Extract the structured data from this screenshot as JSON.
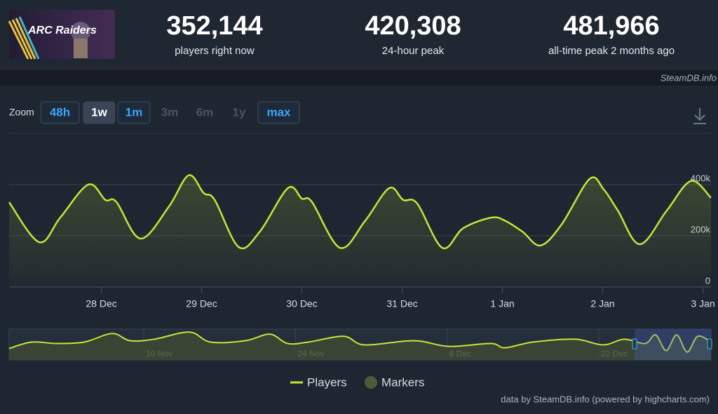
{
  "header": {
    "logo_text": "ARC Raiders",
    "stats": [
      {
        "value": "352,144",
        "label": "players right now"
      },
      {
        "value": "420,308",
        "label": "24-hour peak"
      },
      {
        "value": "481,966",
        "label": "all-time peak 2 months ago"
      }
    ],
    "source": "SteamDB.info"
  },
  "zoom": {
    "label": "Zoom",
    "buttons": [
      {
        "label": "48h",
        "state": "enabled"
      },
      {
        "label": "1w",
        "state": "selected"
      },
      {
        "label": "1m",
        "state": "enabled"
      },
      {
        "label": "3m",
        "state": "disabled"
      },
      {
        "label": "6m",
        "state": "disabled"
      },
      {
        "label": "1y",
        "state": "disabled"
      },
      {
        "label": "max",
        "state": "enabled"
      }
    ]
  },
  "chart_data": [
    {
      "type": "line",
      "x": [
        -0.92,
        -0.62,
        -0.41,
        -0.13,
        0.04,
        0.15,
        0.39,
        0.67,
        0.87,
        1.02,
        1.13,
        1.37,
        1.58,
        1.86,
        2.0,
        2.1,
        2.38,
        2.63,
        2.87,
        3.01,
        3.15,
        3.4,
        3.61,
        3.89,
        4.03,
        4.2,
        4.38,
        4.59,
        4.87,
        5.01,
        5.15,
        5.37,
        5.64,
        5.88,
        6.08
      ],
      "series": [
        {
          "name": "Players",
          "color": "#c4e538",
          "values": [
            331000,
            175000,
            271000,
            400000,
            340000,
            332000,
            189000,
            312000,
            436000,
            367000,
            340000,
            156000,
            216000,
            386000,
            345000,
            332000,
            153000,
            258000,
            386000,
            340000,
            326000,
            153000,
            230000,
            271000,
            258000,
            216000,
            162000,
            244000,
            422000,
            381000,
            299000,
            167000,
            299000,
            414000,
            348000
          ]
        }
      ],
      "marker_series": {
        "name": "Markers",
        "color": "#4d5b37"
      },
      "xlim": [
        -0.92,
        6.08
      ],
      "xticks": [
        {
          "value": 0,
          "label": "28 Dec"
        },
        {
          "value": 1,
          "label": "29 Dec"
        },
        {
          "value": 2,
          "label": "30 Dec"
        },
        {
          "value": 3,
          "label": "31 Dec"
        },
        {
          "value": 4,
          "label": "1 Jan"
        },
        {
          "value": 5,
          "label": "2 Jan"
        },
        {
          "value": 6,
          "label": "3 Jan"
        }
      ],
      "ylim": [
        0,
        600000
      ],
      "yticks": [
        0,
        {
          "value": 200000,
          "label": "200k"
        },
        {
          "value": 400000,
          "label": "400k"
        }
      ],
      "grid": true
    },
    {
      "type": "line",
      "x": [
        -12.43,
        -10.36,
        -8.09,
        -5.5,
        -2.91,
        -1.29,
        0.97,
        4.21,
        6.15,
        9.39,
        11.65,
        13.27,
        15.21,
        18.45,
        20.39,
        24.92,
        28.16,
        32.04,
        33.33,
        35.92,
        39.81,
        42.39,
        44.34,
        46.28,
        47.25,
        48.22,
        49.19,
        50.16,
        51.13,
        52.36
      ],
      "series": [
        {
          "name": "Players",
          "color": "#c4e538",
          "values": [
            186000,
            290000,
            267000,
            290000,
            429000,
            313000,
            336000,
            452000,
            290000,
            313000,
            418000,
            267000,
            290000,
            383000,
            244000,
            313000,
            220000,
            267000,
            197000,
            290000,
            336000,
            244000,
            336000,
            267000,
            406000,
            151000,
            406000,
            128000,
            383000,
            290000
          ]
        }
      ],
      "xlim": [
        -12.43,
        52.36
      ],
      "xticks": [
        {
          "value": 0,
          "label": "10 Nov"
        },
        {
          "value": 14,
          "label": "24 Nov"
        },
        {
          "value": 28,
          "label": "8 Dec"
        },
        {
          "value": 42,
          "label": "22 Dec"
        }
      ],
      "ylim": [
        0,
        500000
      ]
    }
  ],
  "credits": "data by SteamDB.info (powered by highcharts.com)"
}
